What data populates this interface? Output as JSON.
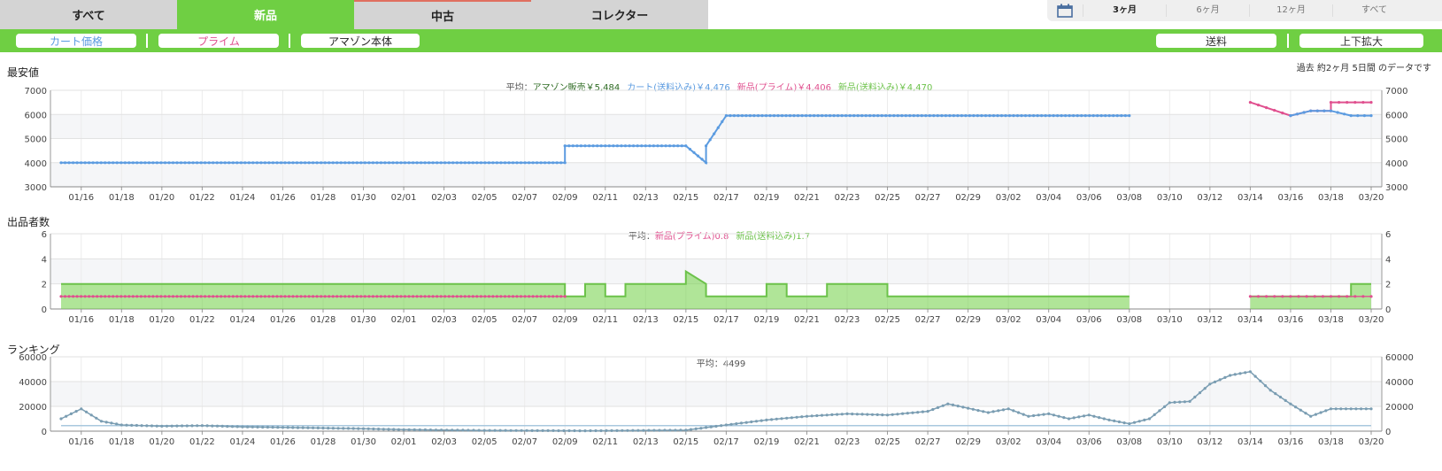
{
  "tabs": [
    {
      "label": "すべて",
      "active": false
    },
    {
      "label": "新品",
      "active": true
    },
    {
      "label": "中古",
      "active": false
    },
    {
      "label": "コレクター",
      "active": false
    }
  ],
  "range": {
    "options": [
      "3ヶ月",
      "6ヶ月",
      "12ヶ月",
      "すべて"
    ],
    "selected": "3ヶ月"
  },
  "toggles": {
    "cart": "カート価格",
    "prime": "プライム",
    "amazon": "アマゾン本体",
    "shipping": "送料",
    "zoom": "上下拡大"
  },
  "colors": {
    "green": "#6fcf43",
    "cart_blue": "#5b9be0",
    "prime_pink": "#e0508f",
    "new_green": "#6cc24a",
    "amazon": "#2e6b23",
    "rank": "#7a9db2"
  },
  "note": "過去 約2ヶ月 5日間 のデータです",
  "x_dates": [
    "01/16",
    "01/18",
    "01/20",
    "01/22",
    "01/24",
    "01/26",
    "01/28",
    "01/30",
    "02/01",
    "02/03",
    "02/05",
    "02/07",
    "02/09",
    "02/11",
    "02/13",
    "02/15",
    "02/17",
    "02/19",
    "02/21",
    "02/23",
    "02/25",
    "02/27",
    "02/29",
    "03/02",
    "03/04",
    "03/06",
    "03/08",
    "03/10",
    "03/12",
    "03/14",
    "03/16",
    "03/18",
    "03/20"
  ],
  "price": {
    "title": "最安値",
    "avg_prefix": "平均：",
    "avg_amazon": "アマゾン販売￥5,484",
    "avg_cart": "カート(送料込み)￥4,476",
    "avg_prime": "新品(プライム)￥4,406",
    "avg_new": "新品(送料込み)￥4,470",
    "y_ticks": [
      "7000",
      "6000",
      "5000",
      "4000",
      "3000"
    ]
  },
  "sellers": {
    "title": "出品者数",
    "avg_prefix": "平均：",
    "avg_prime": "新品(プライム)0.8",
    "avg_new": "新品(送料込み)1.7",
    "y_ticks": [
      "6",
      "4",
      "2",
      "0"
    ]
  },
  "ranking": {
    "title": "ランキング",
    "avg": "平均：4499",
    "y_ticks": [
      "60000",
      "40000",
      "20000",
      "0"
    ]
  },
  "chart_data": [
    {
      "type": "line",
      "title": "最安値",
      "ylim": [
        3000,
        7000
      ],
      "x_start": "01/15",
      "x_end": "03/20",
      "grid": true,
      "series": [
        {
          "name": "カート(送料込み)",
          "x": [
            "01/15",
            "02/09",
            "02/09",
            "02/15",
            "02/16",
            "02/16",
            "02/17",
            "03/08"
          ],
          "values": [
            4000,
            4000,
            4700,
            4700,
            4000,
            4700,
            5950,
            5950
          ]
        },
        {
          "name": "新品(プライム)",
          "x": [
            "03/14",
            "03/16",
            "03/17",
            "03/18",
            "03/18",
            "03/20"
          ],
          "values": [
            6500,
            5950,
            6150,
            6150,
            6500,
            6500
          ]
        },
        {
          "name": "カート(送料込み)",
          "x": [
            "03/16",
            "03/17",
            "03/18",
            "03/19",
            "03/20"
          ],
          "values": [
            5950,
            6150,
            6150,
            5950,
            5950
          ]
        }
      ]
    },
    {
      "type": "area",
      "title": "出品者数",
      "ylim": [
        0,
        6
      ],
      "series": [
        {
          "name": "新品(送料込み)",
          "x": [
            "01/15",
            "02/09",
            "02/09",
            "02/10",
            "02/10",
            "02/11",
            "02/11",
            "02/12",
            "02/12",
            "02/15",
            "02/15",
            "02/16",
            "02/16",
            "02/19",
            "02/19",
            "02/20",
            "02/20",
            "02/22",
            "02/22",
            "02/25",
            "02/25",
            "03/08",
            "03/14",
            "03/19",
            "03/19",
            "03/20"
          ],
          "values": [
            2,
            2,
            1,
            1,
            2,
            2,
            1,
            1,
            2,
            2,
            3,
            2,
            1,
            1,
            2,
            2,
            1,
            1,
            2,
            2,
            1,
            1,
            1,
            1,
            2,
            2
          ]
        },
        {
          "name": "新品(プライム)",
          "x": [
            "01/15",
            "02/09",
            "03/14",
            "03/20"
          ],
          "values": [
            1,
            1,
            1,
            1
          ]
        }
      ]
    },
    {
      "type": "line",
      "title": "ランキング",
      "ylim": [
        0,
        60000
      ],
      "series": [
        {
          "name": "",
          "x": [
            "01/15",
            "01/16",
            "01/17",
            "01/18",
            "01/20",
            "01/22",
            "01/24",
            "01/26",
            "01/28",
            "01/30",
            "02/01",
            "02/05",
            "02/10",
            "02/15",
            "02/17",
            "02/19",
            "02/21",
            "02/23",
            "02/25",
            "02/27",
            "02/28",
            "03/01",
            "03/02",
            "03/03",
            "03/04",
            "03/05",
            "03/06",
            "03/07",
            "03/08",
            "03/09",
            "03/10",
            "03/11",
            "03/12",
            "03/13",
            "03/14",
            "03/15",
            "03/16",
            "03/17",
            "03/18",
            "03/19",
            "03/20"
          ],
          "values": [
            10000,
            18000,
            8000,
            5000,
            4000,
            4500,
            3500,
            3000,
            2500,
            2000,
            1200,
            600,
            300,
            800,
            5000,
            9000,
            12000,
            14000,
            13000,
            16000,
            22000,
            15000,
            18000,
            12000,
            14000,
            10000,
            13000,
            9000,
            6000,
            10000,
            23000,
            24000,
            38000,
            45000,
            48000,
            33000,
            22000,
            12000,
            18000,
            18000,
            18000
          ]
        },
        {
          "name": "",
          "x": [
            "01/15",
            "03/20"
          ],
          "values": [
            4499,
            4499
          ]
        }
      ]
    }
  ]
}
